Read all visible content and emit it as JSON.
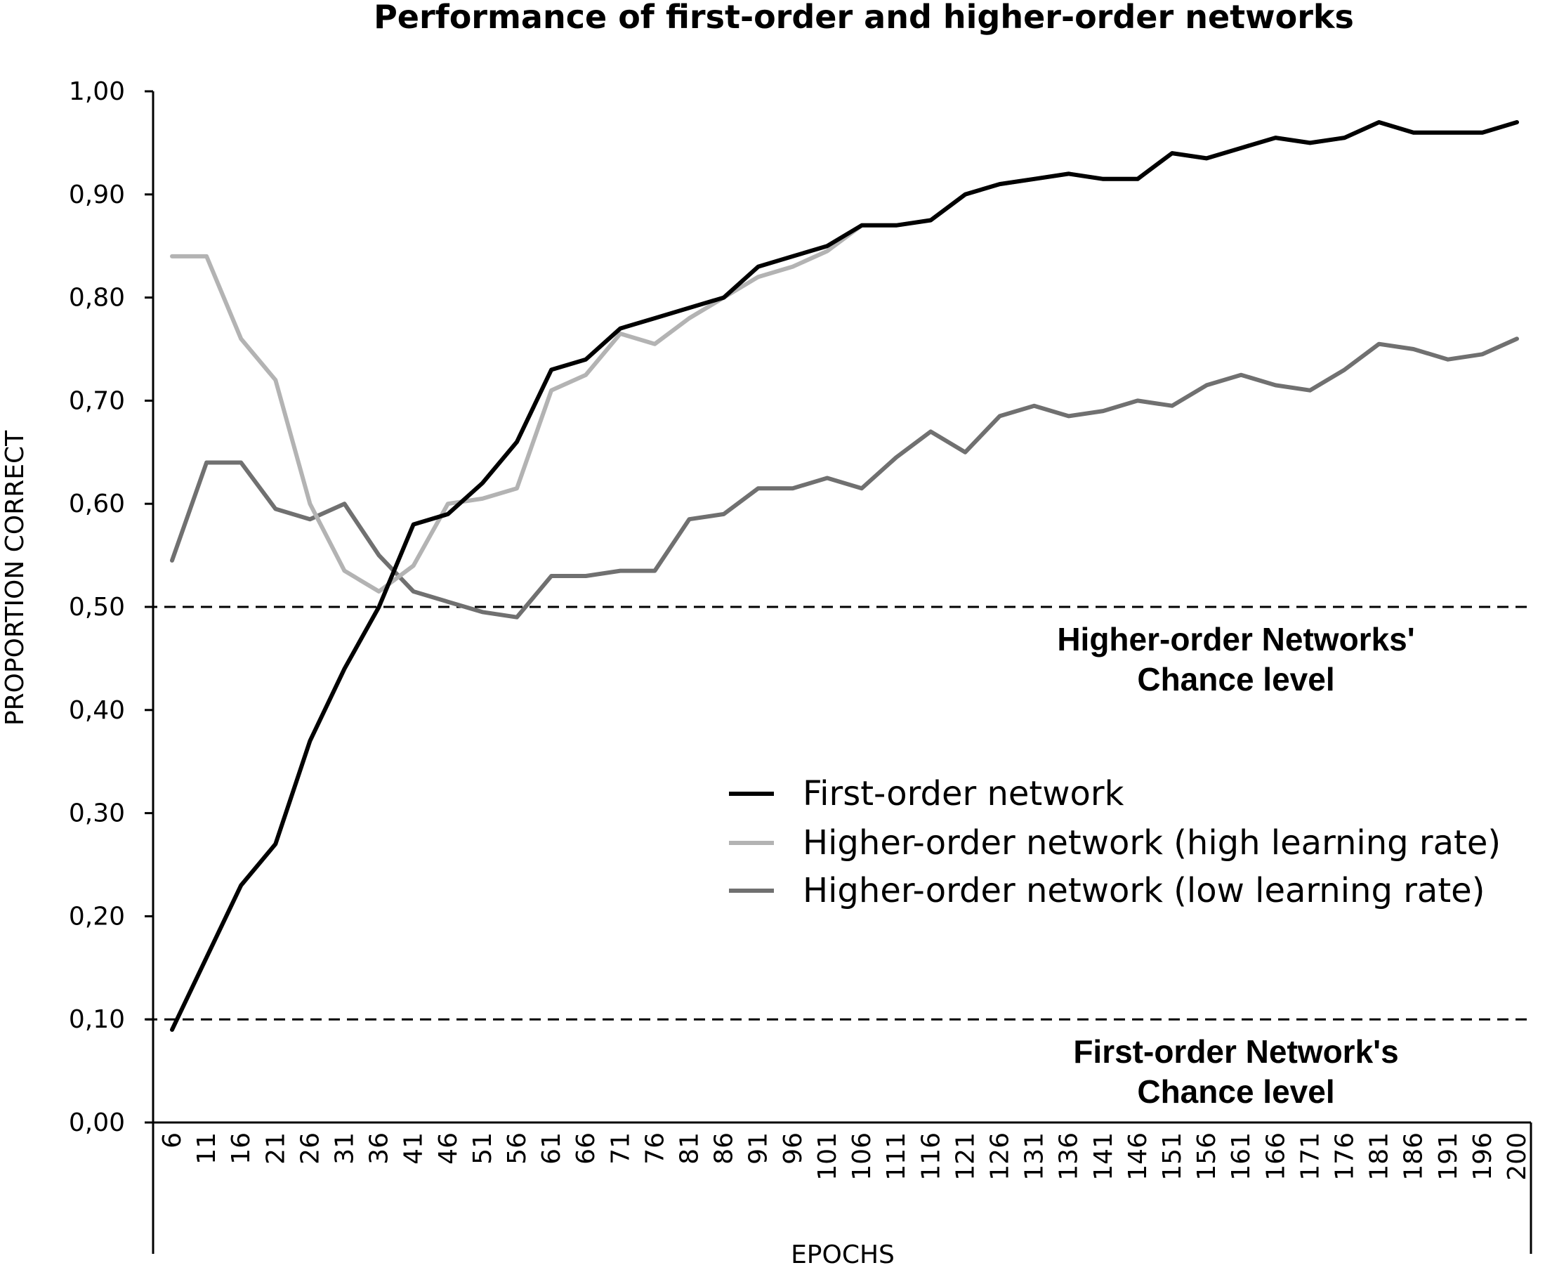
{
  "chart_data": {
    "type": "line",
    "title": "Performance of first-order and higher-order networks",
    "xlabel": "EPOCHS",
    "ylabel": "PROPORTION CORRECT",
    "ylim": [
      0,
      1
    ],
    "yticks": [
      "0,00",
      "0,10",
      "0,20",
      "0,30",
      "0,40",
      "0,50",
      "0,60",
      "0,70",
      "0,80",
      "0,90",
      "1,00"
    ],
    "categories": [
      "6",
      "11",
      "16",
      "21",
      "26",
      "31",
      "36",
      "41",
      "46",
      "51",
      "56",
      "61",
      "66",
      "71",
      "76",
      "81",
      "86",
      "91",
      "96",
      "101",
      "106",
      "111",
      "116",
      "121",
      "126",
      "131",
      "136",
      "141",
      "146",
      "151",
      "156",
      "161",
      "166",
      "171",
      "176",
      "181",
      "186",
      "191",
      "196",
      "200"
    ],
    "series": [
      {
        "name": "First-order network",
        "color": "#000000",
        "values": [
          0.09,
          0.16,
          0.23,
          0.27,
          0.37,
          0.44,
          0.5,
          0.58,
          0.59,
          0.62,
          0.66,
          0.73,
          0.74,
          0.77,
          0.78,
          0.79,
          0.8,
          0.83,
          0.84,
          0.85,
          0.87,
          0.87,
          0.875,
          0.9,
          0.91,
          0.915,
          0.92,
          0.915,
          0.915,
          0.94,
          0.935,
          0.945,
          0.955,
          0.95,
          0.955,
          0.97,
          0.96,
          0.96,
          0.96,
          0.97
        ]
      },
      {
        "name": "Higher-order network (high learning rate)",
        "color": "#b3b3b3",
        "values": [
          0.84,
          0.84,
          0.76,
          0.72,
          0.6,
          0.535,
          0.515,
          0.54,
          0.6,
          0.605,
          0.615,
          0.71,
          0.725,
          0.765,
          0.755,
          0.78,
          0.8,
          0.82,
          0.83,
          0.845,
          0.87,
          0.87,
          0.875,
          0.9,
          0.91,
          0.915,
          0.92,
          0.915,
          0.915,
          0.94,
          0.935,
          0.945,
          0.955,
          0.95,
          0.955,
          0.97,
          0.96,
          0.96,
          0.96,
          0.97
        ]
      },
      {
        "name": "Higher-order network (low learning rate)",
        "color": "#707070",
        "values": [
          0.545,
          0.64,
          0.64,
          0.595,
          0.585,
          0.6,
          0.55,
          0.515,
          0.505,
          0.495,
          0.49,
          0.53,
          0.53,
          0.535,
          0.535,
          0.585,
          0.59,
          0.615,
          0.615,
          0.625,
          0.615,
          0.645,
          0.67,
          0.65,
          0.685,
          0.695,
          0.685,
          0.69,
          0.7,
          0.695,
          0.715,
          0.725,
          0.715,
          0.71,
          0.73,
          0.755,
          0.75,
          0.74,
          0.745,
          0.76
        ]
      }
    ],
    "reference_lines": [
      {
        "value": 0.5,
        "label_lines": [
          "Higher-order Networks'",
          "Chance level"
        ]
      },
      {
        "value": 0.1,
        "label_lines": [
          "First-order Network's",
          "Chance level"
        ]
      }
    ],
    "legend_position": "right-center",
    "grid": false
  }
}
